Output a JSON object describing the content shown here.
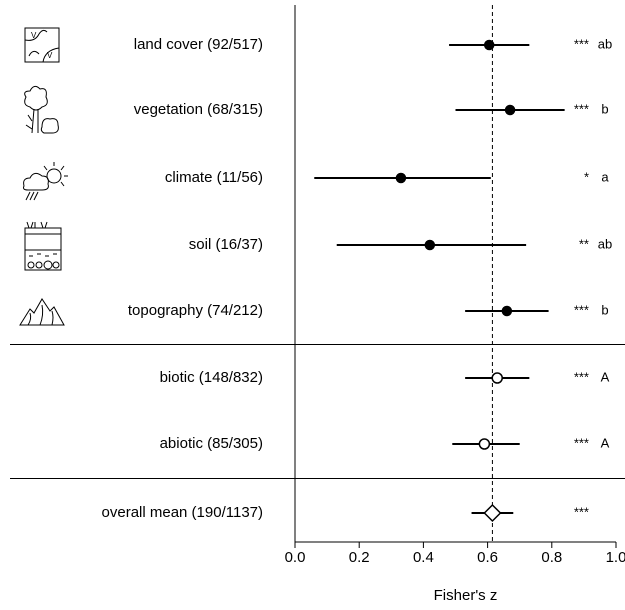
{
  "chart_data": {
    "type": "forest",
    "categories": [
      "land cover (92/517)",
      "vegetation (68/315)",
      "climate (11/56)",
      "soil (16/37)",
      "topography (74/212)",
      "biotic (148/832)",
      "abiotic (85/305)",
      "overall mean (190/1137)"
    ],
    "values": [
      0.605,
      0.67,
      0.33,
      0.42,
      0.66,
      0.63,
      0.59,
      0.615
    ],
    "lower": [
      0.48,
      0.5,
      0.06,
      0.13,
      0.53,
      0.53,
      0.49,
      0.55
    ],
    "upper": [
      0.73,
      0.84,
      0.61,
      0.72,
      0.79,
      0.73,
      0.7,
      0.68
    ],
    "markers": [
      "filled",
      "filled",
      "filled",
      "filled",
      "filled",
      "open",
      "open",
      "diamond"
    ],
    "significance": [
      "***",
      "***",
      "*",
      "**",
      "***",
      "***",
      "***",
      "***"
    ],
    "groups": [
      "ab",
      "b",
      "a",
      "ab",
      "b",
      "A",
      "A",
      null
    ],
    "reference_line": 0.615,
    "xlabel": "Fisher's z",
    "xlim": [
      0,
      1
    ],
    "xticks": [
      {
        "value": 0,
        "label": "0.0"
      },
      {
        "value": 0.2,
        "label": "0.2"
      },
      {
        "value": 0.4,
        "label": "0.4"
      },
      {
        "value": 0.6,
        "label": "0.6"
      },
      {
        "value": 0.8,
        "label": "0.8"
      },
      {
        "value": 1,
        "label": "1.0"
      }
    ]
  }
}
